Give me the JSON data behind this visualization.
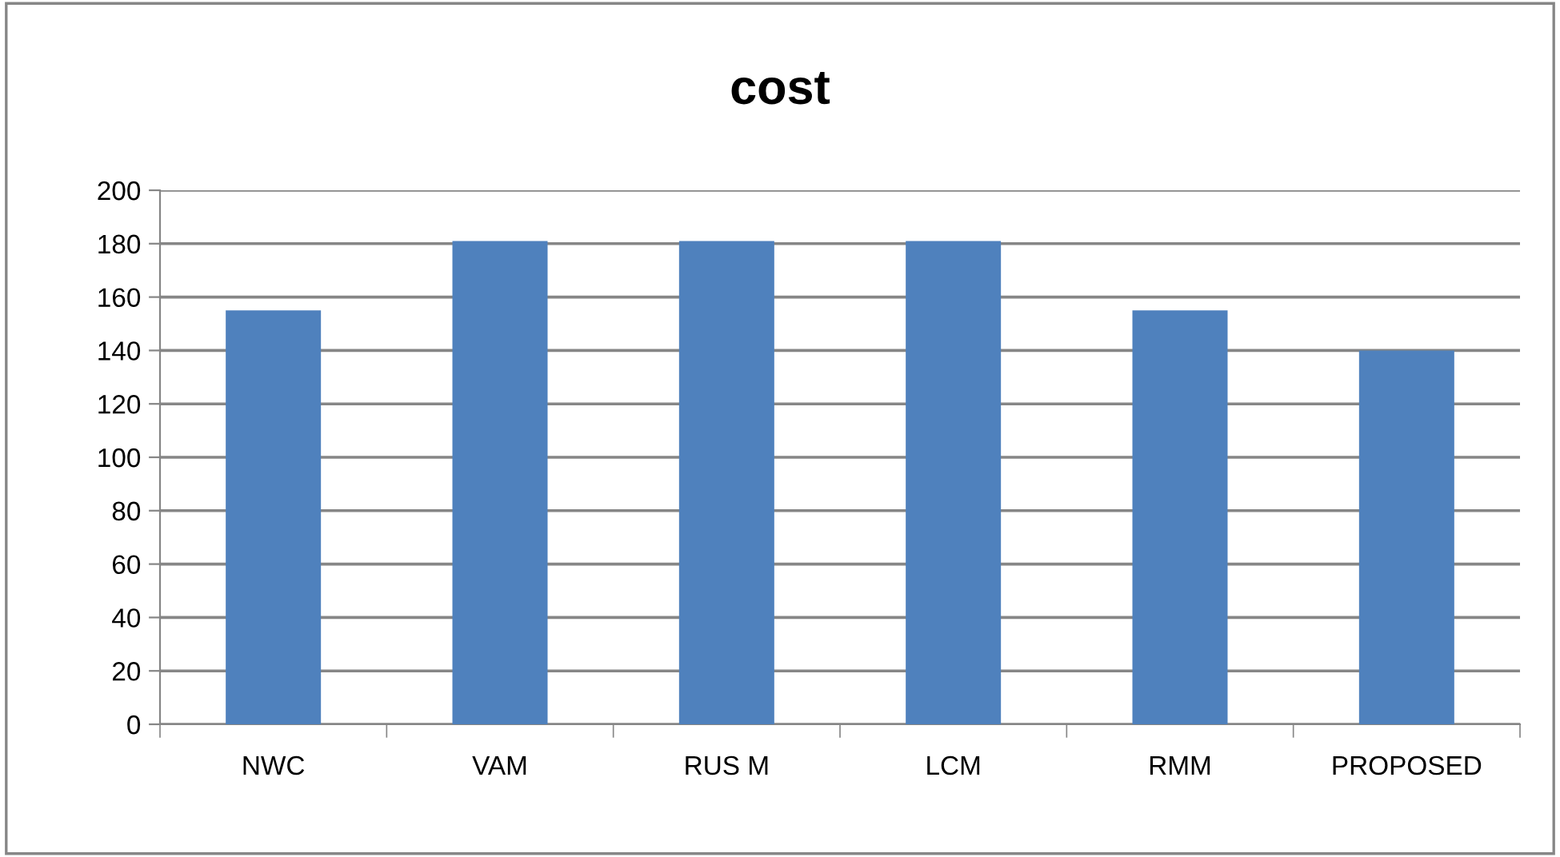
{
  "chart_data": {
    "type": "bar",
    "title": "cost",
    "categories": [
      "NWC",
      "VAM",
      "RUS M",
      "LCM",
      "RMM",
      "PROPOSED"
    ],
    "values": [
      155,
      181,
      181,
      181,
      155,
      140
    ],
    "color": "#4f81bd",
    "ylim": [
      0,
      200
    ],
    "yticks": [
      0,
      20,
      40,
      60,
      80,
      100,
      120,
      140,
      160,
      180,
      200
    ],
    "grid": "y",
    "legend": false
  }
}
